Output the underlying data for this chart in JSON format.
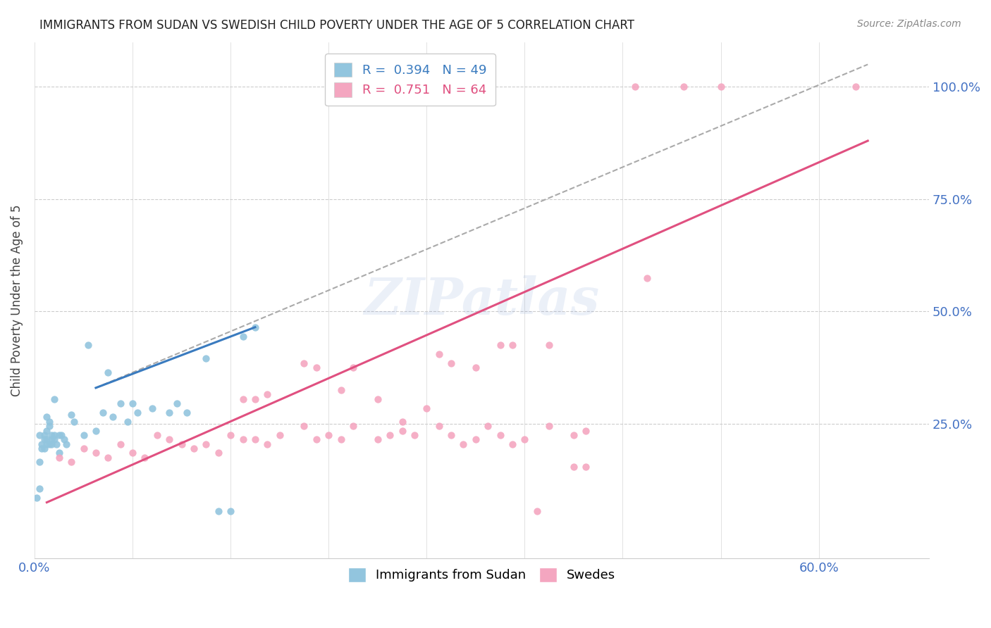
{
  "title": "IMMIGRANTS FROM SUDAN VS SWEDISH CHILD POVERTY UNDER THE AGE OF 5 CORRELATION CHART",
  "source": "Source: ZipAtlas.com",
  "ylabel": "Child Poverty Under the Age of 5",
  "ytick_labels": [
    "100.0%",
    "75.0%",
    "50.0%",
    "25.0%"
  ],
  "ytick_values": [
    1.0,
    0.75,
    0.5,
    0.25
  ],
  "legend_label1": "Immigrants from Sudan",
  "legend_label2": "Swedes",
  "blue_color": "#92c5de",
  "pink_color": "#f4a6c0",
  "blue_line_color": "#3a7bbf",
  "pink_line_color": "#e05080",
  "blue_scatter": [
    [
      0.01,
      0.185
    ],
    [
      0.015,
      0.27
    ],
    [
      0.02,
      0.225
    ],
    [
      0.008,
      0.305
    ],
    [
      0.022,
      0.425
    ],
    [
      0.03,
      0.365
    ],
    [
      0.025,
      0.235
    ],
    [
      0.035,
      0.295
    ],
    [
      0.04,
      0.295
    ],
    [
      0.028,
      0.275
    ],
    [
      0.032,
      0.265
    ],
    [
      0.038,
      0.255
    ],
    [
      0.042,
      0.275
    ],
    [
      0.048,
      0.285
    ],
    [
      0.055,
      0.275
    ],
    [
      0.058,
      0.295
    ],
    [
      0.062,
      0.275
    ],
    [
      0.005,
      0.265
    ],
    [
      0.006,
      0.255
    ],
    [
      0.007,
      0.225
    ],
    [
      0.006,
      0.245
    ],
    [
      0.005,
      0.235
    ],
    [
      0.004,
      0.225
    ],
    [
      0.005,
      0.215
    ],
    [
      0.004,
      0.215
    ],
    [
      0.003,
      0.205
    ],
    [
      0.004,
      0.195
    ],
    [
      0.002,
      0.225
    ],
    [
      0.005,
      0.205
    ],
    [
      0.006,
      0.205
    ],
    [
      0.007,
      0.215
    ],
    [
      0.008,
      0.225
    ],
    [
      0.007,
      0.205
    ],
    [
      0.008,
      0.215
    ],
    [
      0.009,
      0.205
    ],
    [
      0.01,
      0.225
    ],
    [
      0.011,
      0.225
    ],
    [
      0.012,
      0.215
    ],
    [
      0.013,
      0.205
    ],
    [
      0.016,
      0.255
    ],
    [
      0.07,
      0.395
    ],
    [
      0.085,
      0.445
    ],
    [
      0.09,
      0.465
    ],
    [
      0.003,
      0.195
    ],
    [
      0.002,
      0.165
    ],
    [
      0.002,
      0.105
    ],
    [
      0.075,
      0.055
    ],
    [
      0.08,
      0.055
    ],
    [
      0.001,
      0.085
    ]
  ],
  "pink_scatter": [
    [
      0.01,
      0.175
    ],
    [
      0.015,
      0.165
    ],
    [
      0.02,
      0.195
    ],
    [
      0.025,
      0.185
    ],
    [
      0.03,
      0.175
    ],
    [
      0.035,
      0.205
    ],
    [
      0.04,
      0.185
    ],
    [
      0.045,
      0.175
    ],
    [
      0.05,
      0.225
    ],
    [
      0.055,
      0.215
    ],
    [
      0.06,
      0.205
    ],
    [
      0.065,
      0.195
    ],
    [
      0.07,
      0.205
    ],
    [
      0.075,
      0.185
    ],
    [
      0.08,
      0.225
    ],
    [
      0.085,
      0.215
    ],
    [
      0.09,
      0.215
    ],
    [
      0.095,
      0.205
    ],
    [
      0.1,
      0.225
    ],
    [
      0.11,
      0.245
    ],
    [
      0.115,
      0.215
    ],
    [
      0.12,
      0.225
    ],
    [
      0.125,
      0.215
    ],
    [
      0.13,
      0.245
    ],
    [
      0.14,
      0.215
    ],
    [
      0.145,
      0.225
    ],
    [
      0.15,
      0.235
    ],
    [
      0.155,
      0.225
    ],
    [
      0.165,
      0.245
    ],
    [
      0.17,
      0.225
    ],
    [
      0.175,
      0.205
    ],
    [
      0.18,
      0.215
    ],
    [
      0.185,
      0.245
    ],
    [
      0.19,
      0.225
    ],
    [
      0.195,
      0.205
    ],
    [
      0.2,
      0.215
    ],
    [
      0.21,
      0.245
    ],
    [
      0.22,
      0.225
    ],
    [
      0.225,
      0.235
    ],
    [
      0.085,
      0.305
    ],
    [
      0.09,
      0.305
    ],
    [
      0.095,
      0.315
    ],
    [
      0.11,
      0.385
    ],
    [
      0.115,
      0.375
    ],
    [
      0.13,
      0.375
    ],
    [
      0.165,
      0.405
    ],
    [
      0.17,
      0.385
    ],
    [
      0.18,
      0.375
    ],
    [
      0.19,
      0.425
    ],
    [
      0.195,
      0.425
    ],
    [
      0.21,
      0.425
    ],
    [
      0.125,
      0.325
    ],
    [
      0.14,
      0.305
    ],
    [
      0.15,
      0.255
    ],
    [
      0.16,
      0.285
    ],
    [
      0.22,
      0.155
    ],
    [
      0.225,
      0.155
    ],
    [
      0.205,
      0.055
    ],
    [
      0.245,
      1.0
    ],
    [
      0.265,
      1.0
    ],
    [
      0.28,
      1.0
    ],
    [
      0.335,
      1.0
    ],
    [
      0.25,
      0.575
    ]
  ],
  "blue_line": [
    [
      0.025,
      0.33
    ],
    [
      0.09,
      0.465
    ]
  ],
  "pink_line": [
    [
      0.005,
      0.075
    ],
    [
      0.34,
      0.88
    ]
  ],
  "dashed_line": [
    [
      0.025,
      0.33
    ],
    [
      0.34,
      1.05
    ]
  ],
  "xlim": [
    0.0,
    0.365
  ],
  "ylim": [
    -0.05,
    1.1
  ],
  "xtick_positions": [
    0.0,
    0.04,
    0.08,
    0.12,
    0.16,
    0.2,
    0.24,
    0.28,
    0.32
  ],
  "xtick_labels_show": {
    "0.0": "0.0%",
    "0.32": "60.0%"
  },
  "watermark_text": "ZIPatlas",
  "watermark_fontsize": 52,
  "background_color": "#ffffff",
  "grid_color": "#cccccc",
  "title_fontsize": 12,
  "source_fontsize": 10,
  "axis_label_fontsize": 13,
  "ylabel_fontsize": 12
}
